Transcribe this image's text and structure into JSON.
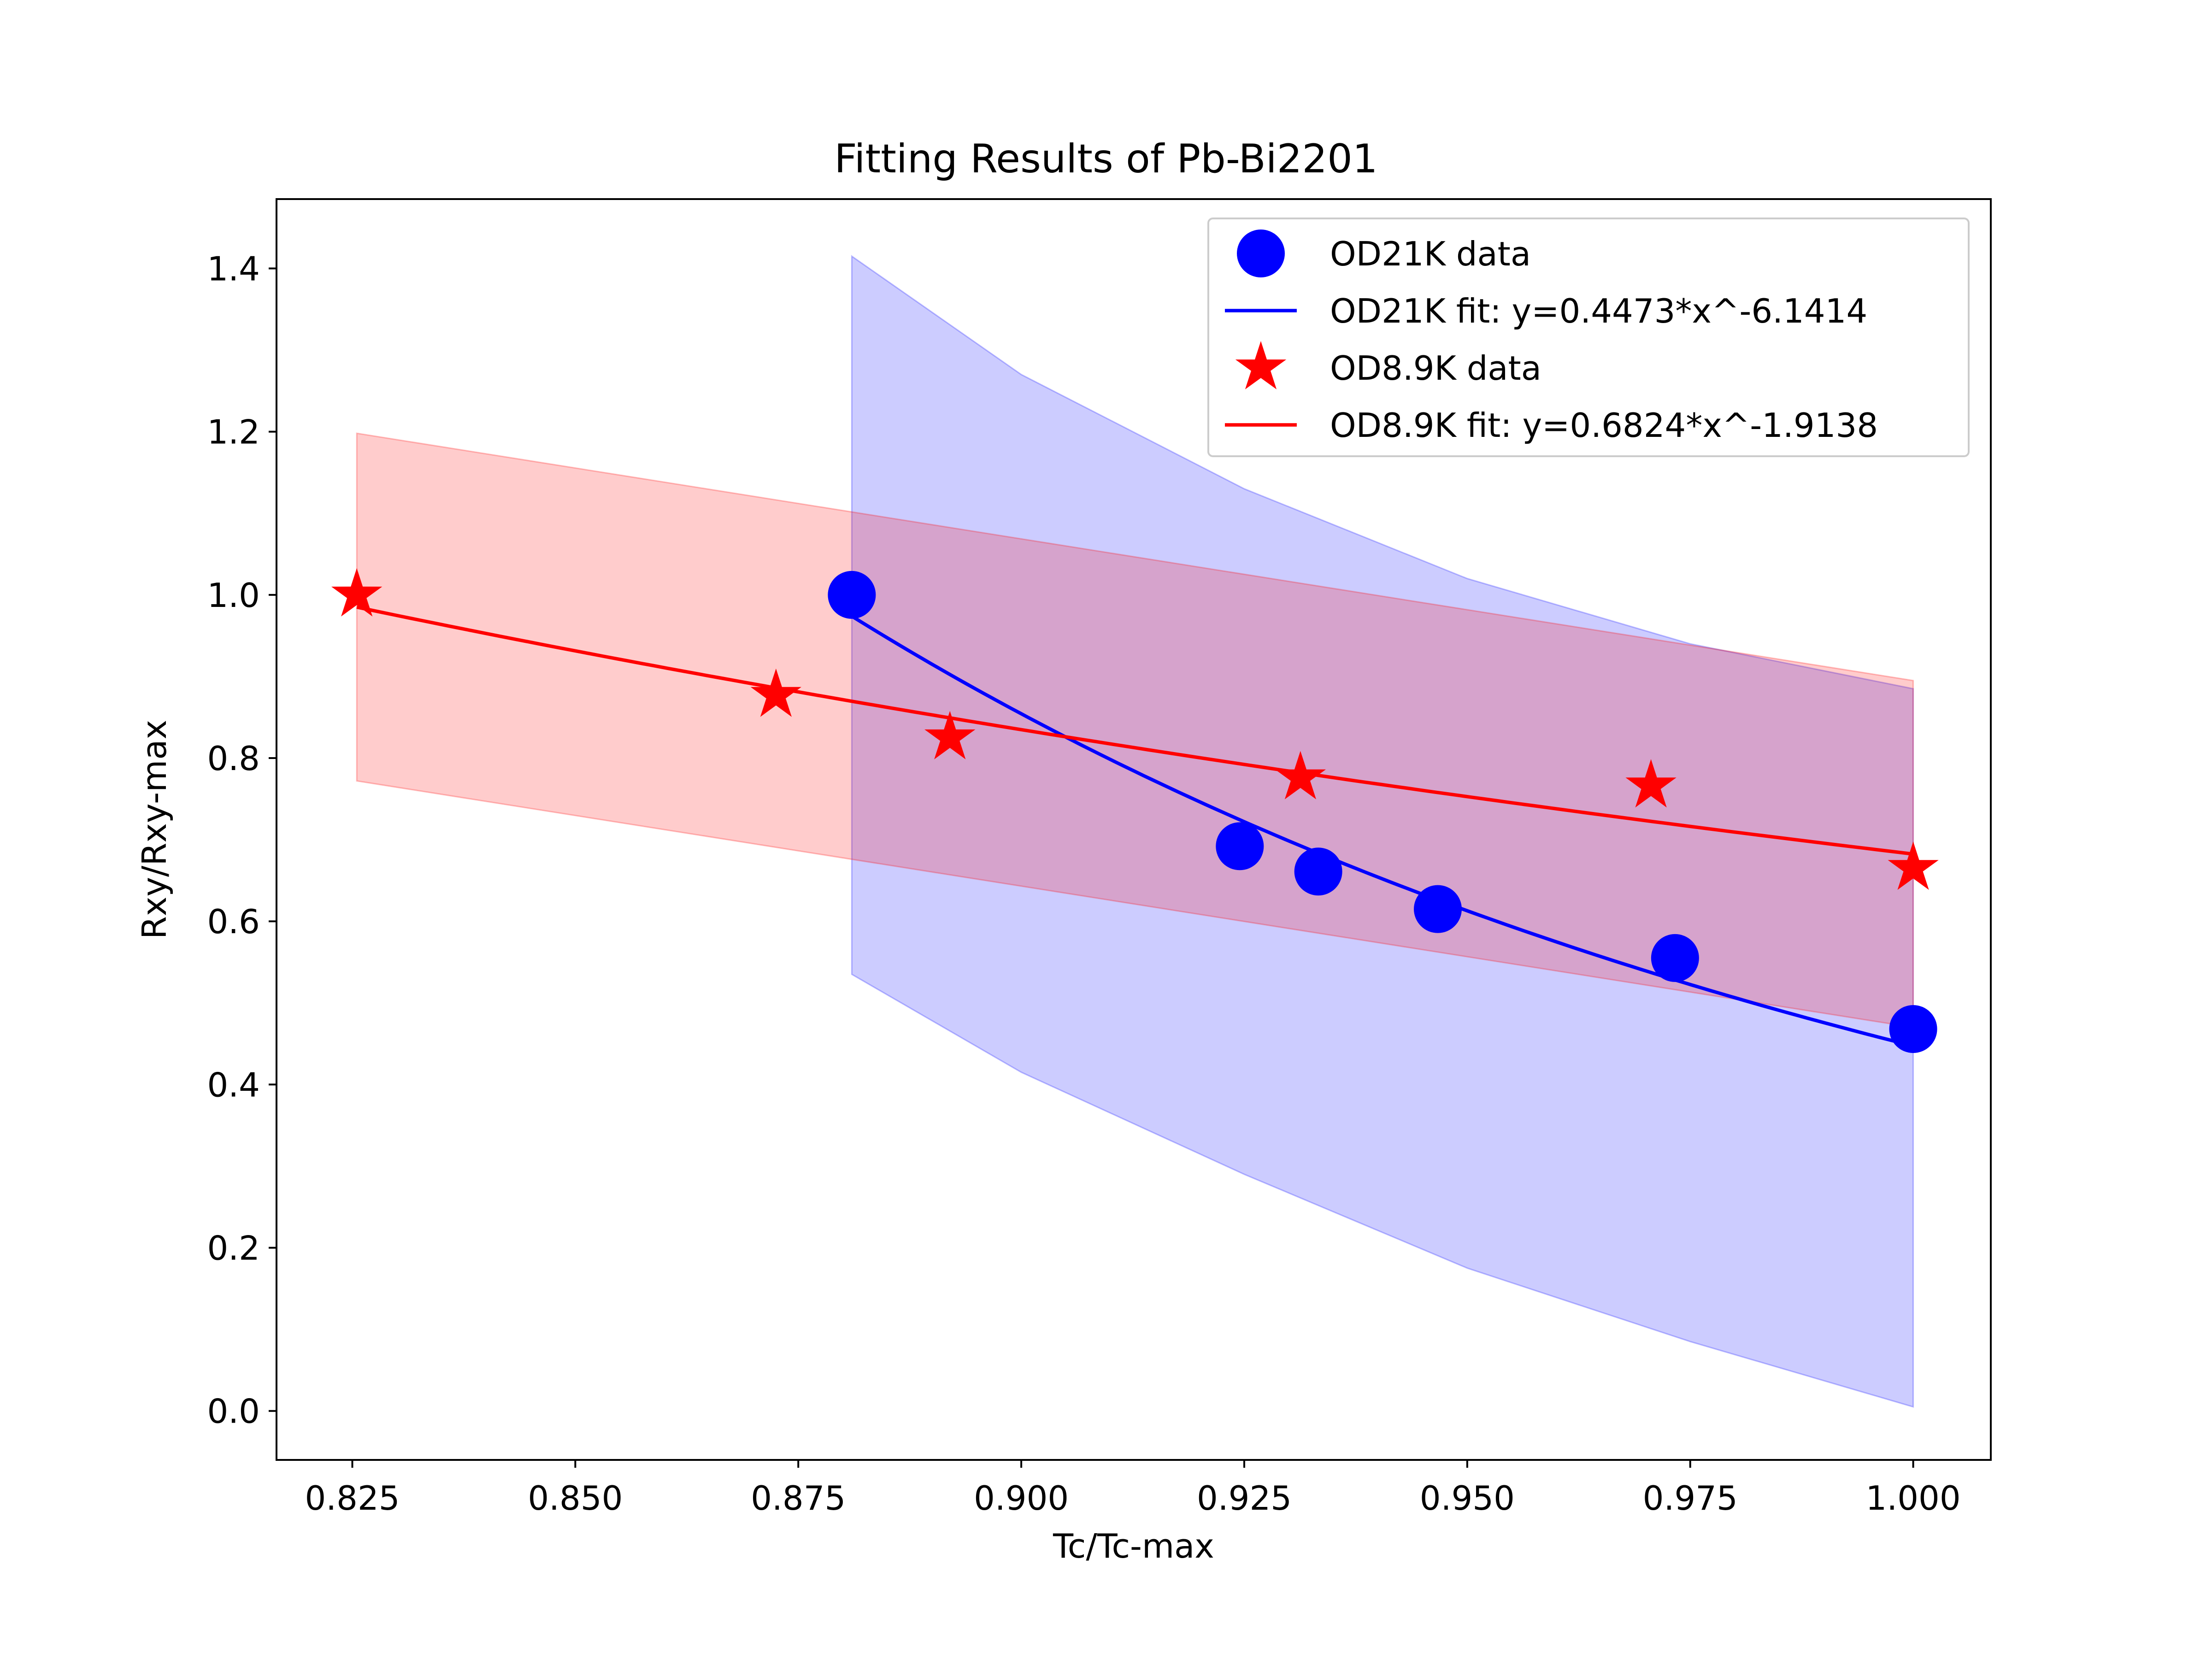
{
  "chart_data": {
    "type": "scatter",
    "title": "Fitting Results of Pb-Bi2201",
    "xlabel": "Tc/Tc-max",
    "ylabel": "Rxy/Rxy-max",
    "xlim": [
      0.8165,
      1.0087
    ],
    "ylim": [
      -0.06,
      1.485
    ],
    "x_ticks": [
      0.825,
      0.85,
      0.875,
      0.9,
      0.925,
      0.95,
      0.975,
      1.0
    ],
    "x_tick_labels": [
      "0.825",
      "0.850",
      "0.875",
      "0.900",
      "0.925",
      "0.950",
      "0.975",
      "1.000"
    ],
    "y_ticks": [
      0.0,
      0.2,
      0.4,
      0.6,
      0.8,
      1.0,
      1.2,
      1.4
    ],
    "y_tick_labels": [
      "0.0",
      "0.2",
      "0.4",
      "0.6",
      "0.8",
      "1.0",
      "1.2",
      "1.4"
    ],
    "grid": false,
    "legend_position": "top-right",
    "series": [
      {
        "name": "OD21K data",
        "kind": "scatter",
        "marker": "circle",
        "color": "#0000ff",
        "x": [
          0.881,
          0.9245,
          0.9333,
          0.9467,
          0.9733,
          1.0
        ],
        "y": [
          1.0,
          0.692,
          0.661,
          0.615,
          0.555,
          0.468
        ]
      },
      {
        "name": "OD21K fit: y=0.4473*x^-6.1414",
        "kind": "line",
        "color": "#0000ff",
        "coefficient": 0.4473,
        "exponent": -6.1414,
        "x_range": [
          0.881,
          1.0
        ],
        "band": {
          "color": "#0000ff",
          "opacity": 0.2,
          "upper_x": [
            0.881,
            0.9,
            0.925,
            0.95,
            0.975,
            1.0
          ],
          "upper_y": [
            1.415,
            1.27,
            1.13,
            1.02,
            0.94,
            0.885
          ],
          "lower_x": [
            0.881,
            0.9,
            0.925,
            0.95,
            0.975,
            1.0
          ],
          "lower_y": [
            0.535,
            0.415,
            0.29,
            0.175,
            0.085,
            0.005
          ]
        }
      },
      {
        "name": "OD8.9K data",
        "kind": "scatter",
        "marker": "star",
        "color": "#ff0000",
        "x": [
          0.8255,
          0.8725,
          0.892,
          0.9313,
          0.9706,
          1.0
        ],
        "y": [
          1.0,
          0.877,
          0.825,
          0.776,
          0.766,
          0.665
        ]
      },
      {
        "name": "OD8.9K fit: y=0.6824*x^-1.9138",
        "kind": "line",
        "color": "#ff0000",
        "coefficient": 0.6824,
        "exponent": -1.9138,
        "x_range": [
          0.8255,
          1.0
        ],
        "band": {
          "color": "#ff0000",
          "opacity": 0.2,
          "upper_x": [
            0.8255,
            1.0
          ],
          "upper_y": [
            1.198,
            0.895
          ],
          "lower_x": [
            0.8255,
            1.0
          ],
          "lower_y": [
            0.772,
            0.47
          ]
        }
      }
    ]
  }
}
